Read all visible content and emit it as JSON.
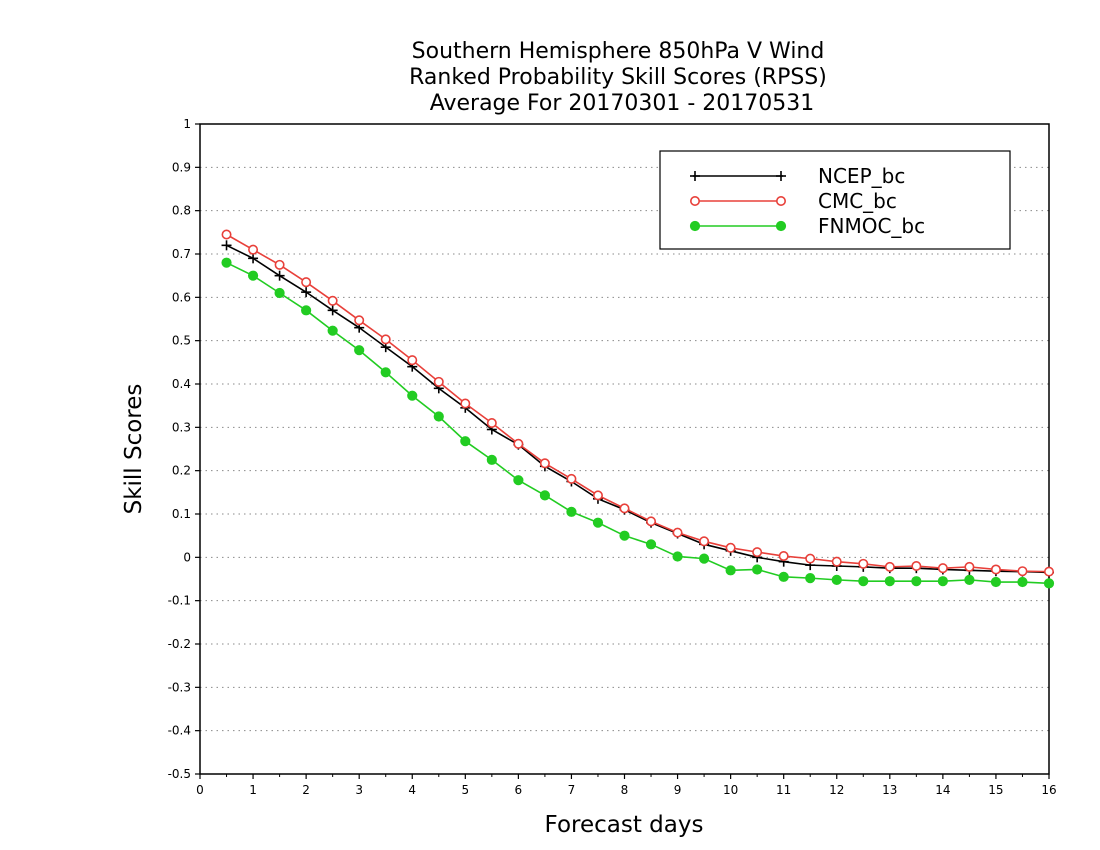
{
  "chart_data": {
    "type": "line",
    "title": [
      "Southern Hemisphere 850hPa V Wind",
      "Ranked Probability Skill Scores (RPSS)",
      "Average For 20170301 - 20170531"
    ],
    "xlabel": "Forecast days",
    "ylabel": "Skill Scores",
    "xlim": [
      0,
      16
    ],
    "ylim": [
      -0.5,
      1
    ],
    "x_ticks": [
      "0",
      "1",
      "2",
      "3",
      "4",
      "5",
      "6",
      "7",
      "8",
      "9",
      "10",
      "11",
      "12",
      "13",
      "14",
      "15",
      "16"
    ],
    "y_ticks": [
      "1",
      "0.9",
      "0.8",
      "0.7",
      "0.6",
      "0.5",
      "0.4",
      "0.3",
      "0.2",
      "0.1",
      "0",
      "-0.1",
      "-0.2",
      "-0.3",
      "-0.4",
      "-0.5"
    ],
    "grid": "horizontal dotted",
    "legend_position": "top-right",
    "x": [
      0.5,
      1,
      1.5,
      2,
      2.5,
      3,
      3.5,
      4,
      4.5,
      5,
      5.5,
      6,
      6.5,
      7,
      7.5,
      8,
      8.5,
      9,
      9.5,
      10,
      10.5,
      11,
      11.5,
      12,
      12.5,
      13,
      13.5,
      14,
      14.5,
      15,
      15.5,
      16
    ],
    "series": [
      {
        "name": "NCEP_bc",
        "color": "#000000",
        "marker": "plus",
        "values": [
          0.72,
          0.69,
          0.65,
          0.612,
          0.57,
          0.53,
          0.485,
          0.44,
          0.39,
          0.345,
          0.295,
          0.26,
          0.21,
          0.175,
          0.135,
          0.11,
          0.08,
          0.055,
          0.03,
          0.015,
          0.0,
          -0.01,
          -0.018,
          -0.02,
          -0.022,
          -0.025,
          -0.025,
          -0.028,
          -0.03,
          -0.032,
          -0.033,
          -0.035
        ]
      },
      {
        "name": "CMC_bc",
        "color": "#e8403a",
        "marker": "open-circle",
        "values": [
          0.745,
          0.71,
          0.675,
          0.635,
          0.592,
          0.547,
          0.503,
          0.455,
          0.405,
          0.355,
          0.31,
          0.262,
          0.217,
          0.181,
          0.143,
          0.113,
          0.083,
          0.057,
          0.037,
          0.022,
          0.012,
          0.003,
          -0.003,
          -0.01,
          -0.015,
          -0.022,
          -0.02,
          -0.025,
          -0.022,
          -0.028,
          -0.032,
          -0.033
        ]
      },
      {
        "name": "FNMOC_bc",
        "color": "#22cc22",
        "marker": "filled-circle",
        "values": [
          0.68,
          0.65,
          0.61,
          0.57,
          0.523,
          0.478,
          0.427,
          0.373,
          0.325,
          0.268,
          0.225,
          0.178,
          0.143,
          0.105,
          0.08,
          0.05,
          0.03,
          0.002,
          -0.003,
          -0.03,
          -0.028,
          -0.045,
          -0.048,
          -0.052,
          -0.055,
          -0.055,
          -0.055,
          -0.055,
          -0.052,
          -0.057,
          -0.057,
          -0.06
        ]
      }
    ]
  }
}
